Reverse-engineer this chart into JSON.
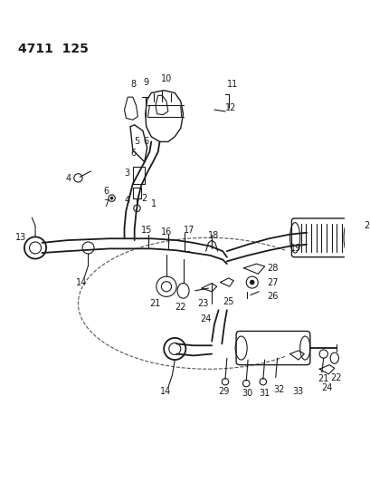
{
  "title": "4711  125",
  "bg_color": "#ffffff",
  "line_color": "#1a1a1a"
}
